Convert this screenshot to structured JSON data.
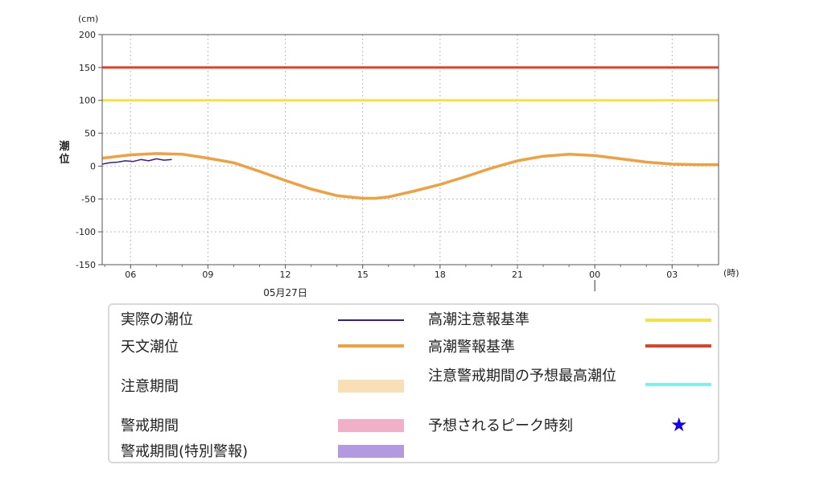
{
  "chart_data": {
    "type": "line",
    "title": "",
    "xlabel": "05月27日",
    "x_unit": "(時)",
    "ylabel": "潮位",
    "y_unit": "(cm)",
    "ylim": [
      -150,
      200
    ],
    "y_ticks": [
      200,
      150,
      100,
      50,
      0,
      -50,
      -100,
      -150
    ],
    "x_ticks": [
      "06",
      "09",
      "12",
      "15",
      "18",
      "21",
      "00",
      "03"
    ],
    "x_range_hours": [
      28.9,
      52.8
    ],
    "x_tick_hours": [
      30,
      33,
      36,
      39,
      42,
      45,
      48,
      51
    ],
    "date_label_hour": 36,
    "grid": true,
    "thresholds": [
      {
        "name": "高潮警報基準",
        "value": 150,
        "color": "#d9442a"
      },
      {
        "name": "高潮注意報基準",
        "value": 100,
        "color": "#f0e14a"
      }
    ],
    "series": [
      {
        "name": "天文潮位",
        "color": "#f0a040",
        "x": [
          28.9,
          30,
          31,
          32,
          33,
          34,
          35,
          36,
          37,
          38,
          39,
          39.5,
          40,
          41,
          42,
          43,
          44,
          45,
          46,
          47,
          48,
          49,
          50,
          51,
          52,
          52.8
        ],
        "y": [
          12,
          17,
          19,
          18,
          12,
          5,
          -8,
          -22,
          -35,
          -45,
          -49,
          -49,
          -47,
          -38,
          -28,
          -16,
          -3,
          8,
          15,
          18,
          16,
          11,
          6,
          3,
          2,
          2
        ]
      },
      {
        "name": "実際の潮位",
        "color": "#3a1a9a",
        "x": [
          28.9,
          29.2,
          29.5,
          29.8,
          30.1,
          30.4,
          30.7,
          31.0,
          31.3,
          31.6
        ],
        "y": [
          3,
          5,
          6,
          8,
          7,
          10,
          8,
          11,
          9,
          10
        ]
      }
    ]
  },
  "legend": {
    "actual": "実際の潮位",
    "astro": "天文潮位",
    "caution_period": "注意期間",
    "warning_period": "警戒期間",
    "special_warning_period": "警戒期間(特別警報)",
    "high_tide_advisory": "高潮注意報基準",
    "high_tide_warning": "高潮警報基準",
    "predicted_max": "注意警戒期間の予想最高潮位",
    "predicted_peak": "予想されるピーク時刻"
  },
  "colors": {
    "actual": "#3a1a9a",
    "astro": "#f0a040",
    "caution_band": "#f9dfb6",
    "warning_band": "#f2b0c8",
    "special_band": "#b39ae0",
    "advisory_line": "#f0e14a",
    "warning_line": "#d9442a",
    "predicted_max_line": "#7ff0f0",
    "peak_star": "#1400e6"
  },
  "icons": {
    "peak": "star-icon"
  }
}
